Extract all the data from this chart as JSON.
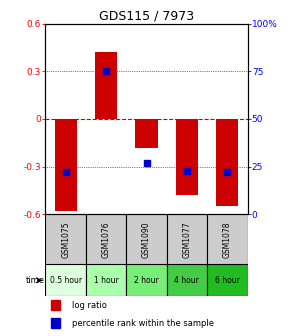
{
  "title": "GDS115 / 7973",
  "samples": [
    "GSM1075",
    "GSM1076",
    "GSM1090",
    "GSM1077",
    "GSM1078"
  ],
  "time_labels": [
    "0.5 hour",
    "1 hour",
    "2 hour",
    "4 hour",
    "6 hour"
  ],
  "time_colors": [
    "#ddffdd",
    "#aaffaa",
    "#77ee77",
    "#44cc44",
    "#22bb22"
  ],
  "log_ratios": [
    -0.58,
    0.42,
    -0.18,
    -0.48,
    -0.55
  ],
  "percentile_ranks": [
    0.22,
    0.75,
    0.27,
    0.23,
    0.22
  ],
  "ylim": [
    -0.6,
    0.6
  ],
  "yticks_left": [
    -0.6,
    -0.3,
    0.0,
    0.3,
    0.6
  ],
  "yticks_right": [
    0,
    25,
    50,
    75,
    100
  ],
  "bar_color": "#cc0000",
  "dot_color": "#0000cc",
  "zero_line_color": "#cc0000",
  "bar_width": 0.55,
  "sample_bg": "#cccccc",
  "background_color": "#ffffff"
}
